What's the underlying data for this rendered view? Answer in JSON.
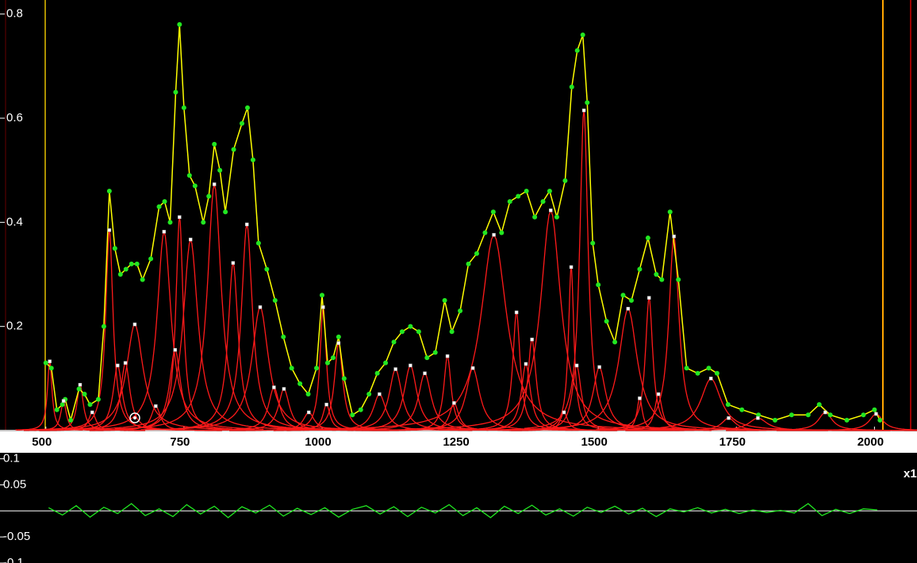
{
  "chart_data": [
    {
      "type": "peakfit",
      "xlim": [
        417,
        2077
      ],
      "ylim": [
        0,
        0.827
      ],
      "xticks": [
        500,
        750,
        1000,
        1250,
        1500,
        1750,
        2000
      ],
      "yticks": [
        0.2,
        0.4,
        0.6,
        0.8
      ],
      "color": "#22e622",
      "fit_color": "#ffff00",
      "x": [
        500,
        510,
        520,
        530,
        535,
        545,
        560,
        570,
        580,
        595,
        605,
        615,
        625,
        635,
        645,
        655,
        665,
        675,
        690,
        705,
        715,
        725,
        735,
        742,
        750,
        760,
        770,
        785,
        795,
        805,
        815,
        825,
        840,
        855,
        865,
        875,
        885,
        900,
        915,
        930,
        945,
        960,
        975,
        990,
        1000,
        1010,
        1020,
        1030,
        1040,
        1055,
        1070,
        1085,
        1100,
        1115,
        1130,
        1145,
        1160,
        1175,
        1190,
        1205,
        1222,
        1235,
        1250,
        1265,
        1280,
        1295,
        1310,
        1325,
        1340,
        1355,
        1370,
        1385,
        1400,
        1412,
        1425,
        1440,
        1452,
        1462,
        1472,
        1480,
        1490,
        1500,
        1515,
        1530,
        1545,
        1560,
        1575,
        1590,
        1605,
        1615,
        1630,
        1645,
        1660,
        1680,
        1700,
        1715,
        1735,
        1760,
        1790,
        1820,
        1850,
        1880,
        1900,
        1920,
        1950,
        1980,
        2000,
        2010
      ],
      "values": [
        0.13,
        0.12,
        0.04,
        0.05,
        0.06,
        0.02,
        0.08,
        0.07,
        0.05,
        0.06,
        0.2,
        0.46,
        0.35,
        0.3,
        0.31,
        0.32,
        0.32,
        0.29,
        0.33,
        0.43,
        0.44,
        0.4,
        0.65,
        0.78,
        0.62,
        0.49,
        0.47,
        0.4,
        0.45,
        0.55,
        0.5,
        0.42,
        0.54,
        0.59,
        0.62,
        0.52,
        0.36,
        0.31,
        0.25,
        0.18,
        0.12,
        0.09,
        0.07,
        0.12,
        0.26,
        0.13,
        0.14,
        0.18,
        0.1,
        0.03,
        0.04,
        0.07,
        0.11,
        0.13,
        0.17,
        0.19,
        0.2,
        0.19,
        0.14,
        0.15,
        0.25,
        0.19,
        0.23,
        0.32,
        0.34,
        0.38,
        0.42,
        0.38,
        0.44,
        0.45,
        0.46,
        0.41,
        0.44,
        0.46,
        0.41,
        0.48,
        0.66,
        0.73,
        0.76,
        0.63,
        0.36,
        0.28,
        0.21,
        0.17,
        0.26,
        0.25,
        0.31,
        0.37,
        0.3,
        0.29,
        0.42,
        0.29,
        0.12,
        0.11,
        0.12,
        0.11,
        0.05,
        0.04,
        0.03,
        0.02,
        0.03,
        0.03,
        0.05,
        0.03,
        0.02,
        0.03,
        0.04,
        0.02
      ],
      "peaks": {
        "color": "#ff1a1a",
        "centers": [
          507,
          532,
          562,
          584,
          615,
          630,
          644,
          661,
          699,
          714,
          734,
          742,
          762,
          805,
          839,
          864,
          888,
          913,
          931,
          976,
          1002,
          1008,
          1030,
          1104,
          1133,
          1160,
          1186,
          1227,
          1239,
          1273,
          1311,
          1352,
          1369,
          1380,
          1414,
          1438,
          1451,
          1461,
          1474,
          1502,
          1554,
          1575,
          1592,
          1609,
          1637,
          1704,
          1736,
          1789,
          1911,
          2003
        ],
        "heights": [
          0.133,
          0.057,
          0.088,
          0.035,
          0.385,
          0.125,
          0.13,
          0.204,
          0.047,
          0.382,
          0.155,
          0.41,
          0.367,
          0.473,
          0.322,
          0.396,
          0.237,
          0.083,
          0.08,
          0.035,
          0.237,
          0.05,
          0.168,
          0.07,
          0.118,
          0.125,
          0.11,
          0.143,
          0.053,
          0.12,
          0.376,
          0.227,
          0.128,
          0.175,
          0.423,
          0.035,
          0.314,
          0.125,
          0.615,
          0.122,
          0.234,
          0.062,
          0.255,
          0.07,
          0.373,
          0.1,
          0.024,
          0.024,
          0.035,
          0.032
        ],
        "widths": [
          5,
          6,
          7,
          8,
          8,
          10,
          10,
          18,
          10,
          15,
          12,
          8,
          16,
          15,
          11,
          12,
          18,
          12,
          12,
          12,
          7,
          8,
          9,
          14,
          14,
          14,
          14,
          8,
          10,
          15,
          28,
          8,
          10,
          9,
          22,
          8,
          6,
          10,
          9,
          14,
          20,
          6,
          8,
          8,
          11,
          22,
          15,
          20,
          15,
          15
        ]
      }
    },
    {
      "type": "line",
      "xlim": [
        417,
        2077
      ],
      "ylim": [
        -0.1,
        0.11
      ],
      "yticks": [
        0.1,
        0.05,
        -0.05,
        -0.1
      ],
      "color": "#22e622",
      "note": "x1",
      "x": [
        505,
        530,
        555,
        580,
        605,
        630,
        655,
        680,
        705,
        730,
        755,
        780,
        805,
        830,
        855,
        880,
        905,
        930,
        955,
        980,
        1005,
        1030,
        1055,
        1080,
        1105,
        1130,
        1155,
        1180,
        1205,
        1230,
        1255,
        1280,
        1305,
        1330,
        1355,
        1380,
        1405,
        1430,
        1455,
        1480,
        1505,
        1530,
        1555,
        1580,
        1605,
        1630,
        1655,
        1680,
        1705,
        1730,
        1755,
        1780,
        1805,
        1830,
        1855,
        1880,
        1905,
        1930,
        1955,
        1980,
        2005
      ],
      "values": [
        0.006,
        -0.008,
        0.01,
        -0.012,
        0.007,
        -0.005,
        0.014,
        -0.009,
        0.004,
        -0.011,
        0.012,
        -0.006,
        0.009,
        -0.013,
        0.008,
        -0.004,
        0.011,
        -0.01,
        0.005,
        -0.007,
        0.006,
        -0.012,
        0.003,
        0.01,
        -0.006,
        0.008,
        -0.011,
        0.007,
        -0.004,
        0.012,
        -0.009,
        0.006,
        -0.013,
        0.009,
        -0.005,
        0.011,
        -0.008,
        0.004,
        -0.01,
        0.007,
        -0.003,
        0.009,
        -0.006,
        0.005,
        -0.011,
        0.004,
        -0.002,
        0.006,
        -0.004,
        0.003,
        -0.005,
        0.002,
        -0.003,
        0.001,
        -0.004,
        0.014,
        -0.009,
        0.003,
        -0.005,
        0.004,
        0.002
      ]
    }
  ]
}
